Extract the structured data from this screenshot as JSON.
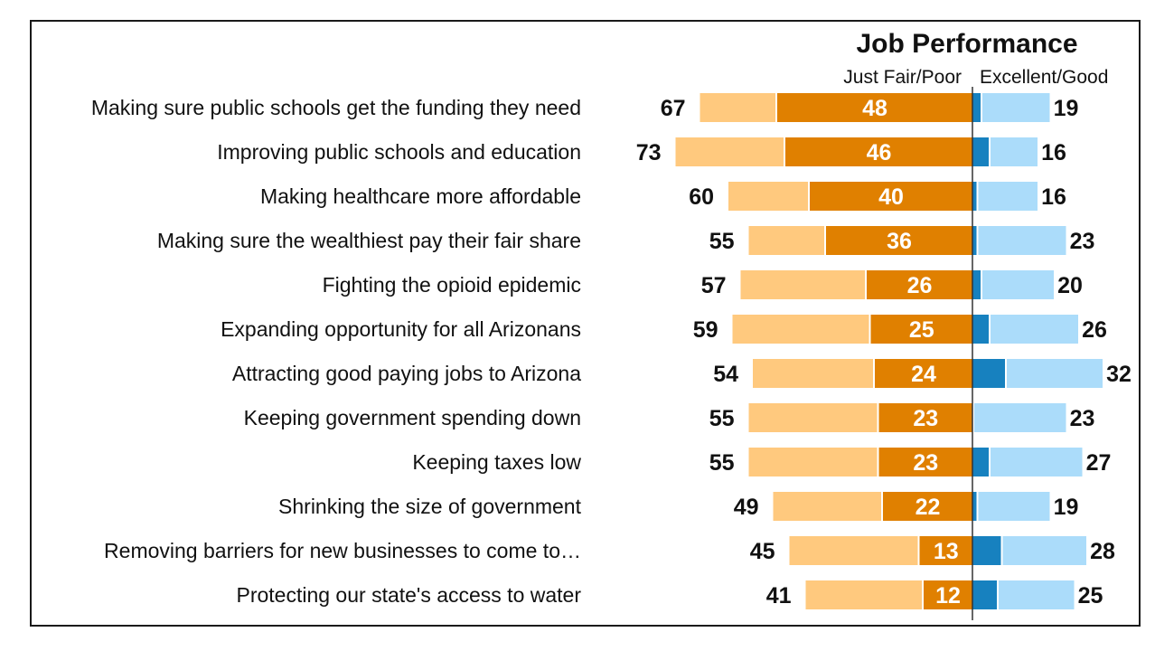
{
  "chart_data": {
    "type": "bar",
    "title": "Job Performance",
    "legend": {
      "negative_label": "Just Fair/Poor",
      "positive_label": "Excellent/Good"
    },
    "categories": [
      "Making sure public schools get the funding they need",
      "Improving public schools and education",
      "Making healthcare more affordable",
      "Making sure the wealthiest pay their fair share",
      "Fighting the opioid epidemic",
      "Expanding opportunity for all Arizonans",
      "Attracting good paying jobs to Arizona",
      "Keeping government spending down",
      "Keeping taxes low",
      "Shrinking the size of government",
      "Removing barriers for new businesses to come to…",
      "Protecting our state's access to water"
    ],
    "negative_total": [
      67,
      73,
      60,
      55,
      57,
      59,
      54,
      55,
      55,
      49,
      45,
      41
    ],
    "negative_strong": [
      48,
      46,
      40,
      36,
      26,
      25,
      24,
      23,
      23,
      22,
      13,
      12
    ],
    "positive_total": [
      19,
      16,
      16,
      23,
      20,
      26,
      32,
      23,
      27,
      19,
      28,
      25
    ],
    "positive_strong": [
      2,
      4,
      1,
      1,
      2,
      4,
      8,
      0,
      4,
      1,
      7,
      6
    ],
    "colors": {
      "negative_light": "#FFC97E",
      "negative_strong": "#E08000",
      "positive_light": "#ABDCFA",
      "positive_strong": "#1781BF"
    }
  }
}
